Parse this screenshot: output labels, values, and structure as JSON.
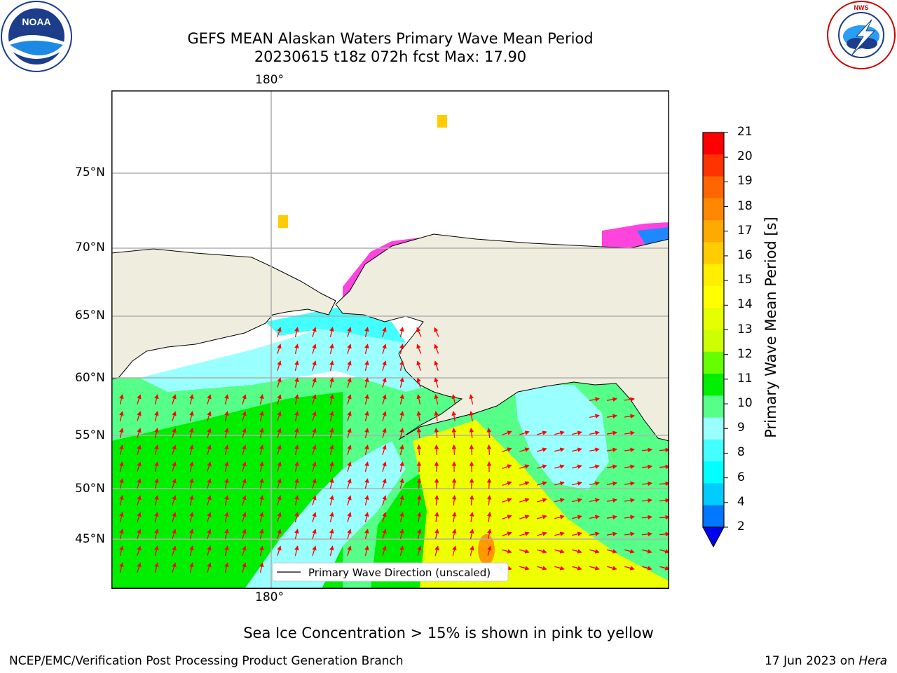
{
  "header": {
    "title_line1": "GEFS MEAN Alaskan Waters Primary Wave Mean Period",
    "title_line2": "20230615 t18z 072h fcst   Max: 17.90"
  },
  "logos": {
    "left": {
      "text": "NOAA",
      "ring_text": "NATIONAL OCEANIC AND ATMOSPHERIC ADMINISTRATION · U.S. DEPARTMENT OF COMMERCE"
    },
    "right": {
      "ring_text": "NATIONAL WEATHER SERVICE"
    }
  },
  "map": {
    "lon_label_top": "180°",
    "lon_label_bottom": "180°",
    "lat_labels": [
      "75°N",
      "70°N",
      "65°N",
      "60°N",
      "55°N",
      "50°N",
      "45°N"
    ],
    "legend_label": "Primary Wave Direction (unscaled)"
  },
  "colorbar": {
    "label": "Primary Wave Mean Period [s]",
    "ticks": [
      "21",
      "20",
      "19",
      "18",
      "17",
      "16",
      "15",
      "14",
      "13",
      "12",
      "11",
      "10",
      "9",
      "8",
      "6",
      "4",
      "2"
    ],
    "colors": [
      "#ff0000",
      "#ff3300",
      "#ff6600",
      "#ff8800",
      "#ffaa00",
      "#ffcc00",
      "#ffee00",
      "#ffff00",
      "#e6ff00",
      "#ccff00",
      "#66ff00",
      "#00ee00",
      "#55ff88",
      "#99ffff",
      "#44ffff",
      "#00ffff",
      "#00ccff",
      "#0077ff",
      "#0000ee"
    ]
  },
  "caption": "Sea Ice Concentration > 15% is shown in pink to yellow",
  "footer": {
    "left": "NCEP/EMC/Verification Post Processing Product Generation Branch",
    "right_date": "17 Jun 2023 on ",
    "right_host": "Hera"
  }
}
